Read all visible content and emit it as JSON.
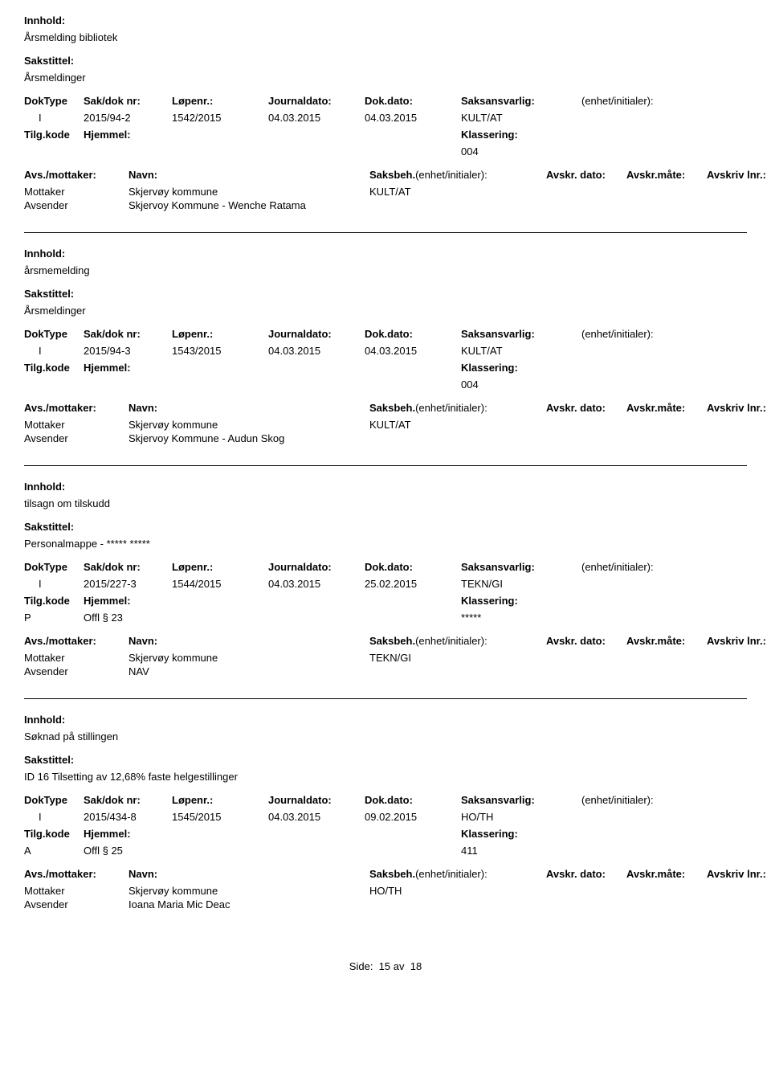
{
  "labels": {
    "innhold": "Innhold:",
    "sakstittel": "Sakstittel:",
    "doktype": "DokType",
    "sakdok": "Sak/dok nr:",
    "lopenr": "Løpenr.:",
    "journaldato": "Journaldato:",
    "dokdato": "Dok.dato:",
    "saksansvarlig": "Saksansvarlig:",
    "enhet": "(enhet/initialer):",
    "tilgkode": "Tilg.kode",
    "hjemmel": "Hjemmel:",
    "klassering": "Klassering:",
    "avs_mottaker": "Avs./mottaker:",
    "navn": "Navn:",
    "saksbeh": "Saksbeh.",
    "avskr_dato": "Avskr. dato:",
    "avskr_mate": "Avskr.måte:",
    "avskriv_lnr": "Avskriv lnr.:",
    "mottaker": "Mottaker",
    "avsender": "Avsender"
  },
  "records": [
    {
      "innhold": "Årsmelding bibliotek",
      "sakstittel": "Årsmeldinger",
      "doktype": "I",
      "sakdok": "2015/94-2",
      "lopenr": "1542/2015",
      "journaldato": "04.03.2015",
      "dokdato": "04.03.2015",
      "saksansvarlig": "KULT/AT",
      "tilgkode": "",
      "hjemmel": "",
      "klassering": "004",
      "saksbeh": "KULT/AT",
      "parties": [
        {
          "role": "Mottaker",
          "name": "Skjervøy kommune"
        },
        {
          "role": "Avsender",
          "name": "Skjervoy Kommune - Wenche Ratama"
        }
      ]
    },
    {
      "innhold": "årsmemelding",
      "sakstittel": "Årsmeldinger",
      "doktype": "I",
      "sakdok": "2015/94-3",
      "lopenr": "1543/2015",
      "journaldato": "04.03.2015",
      "dokdato": "04.03.2015",
      "saksansvarlig": "KULT/AT",
      "tilgkode": "",
      "hjemmel": "",
      "klassering": "004",
      "saksbeh": "KULT/AT",
      "parties": [
        {
          "role": "Mottaker",
          "name": "Skjervøy kommune"
        },
        {
          "role": "Avsender",
          "name": "Skjervoy Kommune - Audun Skog"
        }
      ]
    },
    {
      "innhold": "tilsagn om tilskudd",
      "sakstittel": "Personalmappe -  ***** *****",
      "doktype": "I",
      "sakdok": "2015/227-3",
      "lopenr": "1544/2015",
      "journaldato": "04.03.2015",
      "dokdato": "25.02.2015",
      "saksansvarlig": "TEKN/GI",
      "tilgkode": "P",
      "hjemmel": "Offl § 23",
      "klassering": "*****",
      "saksbeh": "TEKN/GI",
      "parties": [
        {
          "role": "Mottaker",
          "name": "Skjervøy kommune"
        },
        {
          "role": "Avsender",
          "name": "NAV"
        }
      ]
    },
    {
      "innhold": "Søknad på stillingen",
      "sakstittel": "ID 16  Tilsetting av 12,68% faste helgestillinger",
      "doktype": "I",
      "sakdok": "2015/434-8",
      "lopenr": "1545/2015",
      "journaldato": "04.03.2015",
      "dokdato": "09.02.2015",
      "saksansvarlig": "HO/TH",
      "tilgkode": "A",
      "hjemmel": "Offl § 25",
      "klassering": "411",
      "saksbeh": "HO/TH",
      "parties": [
        {
          "role": "Mottaker",
          "name": "Skjervøy kommune"
        },
        {
          "role": "Avsender",
          "name": "Ioana Maria Mic Deac"
        }
      ]
    }
  ],
  "footer": {
    "side": "Side:",
    "page": "15",
    "av": "av",
    "total": "18"
  }
}
